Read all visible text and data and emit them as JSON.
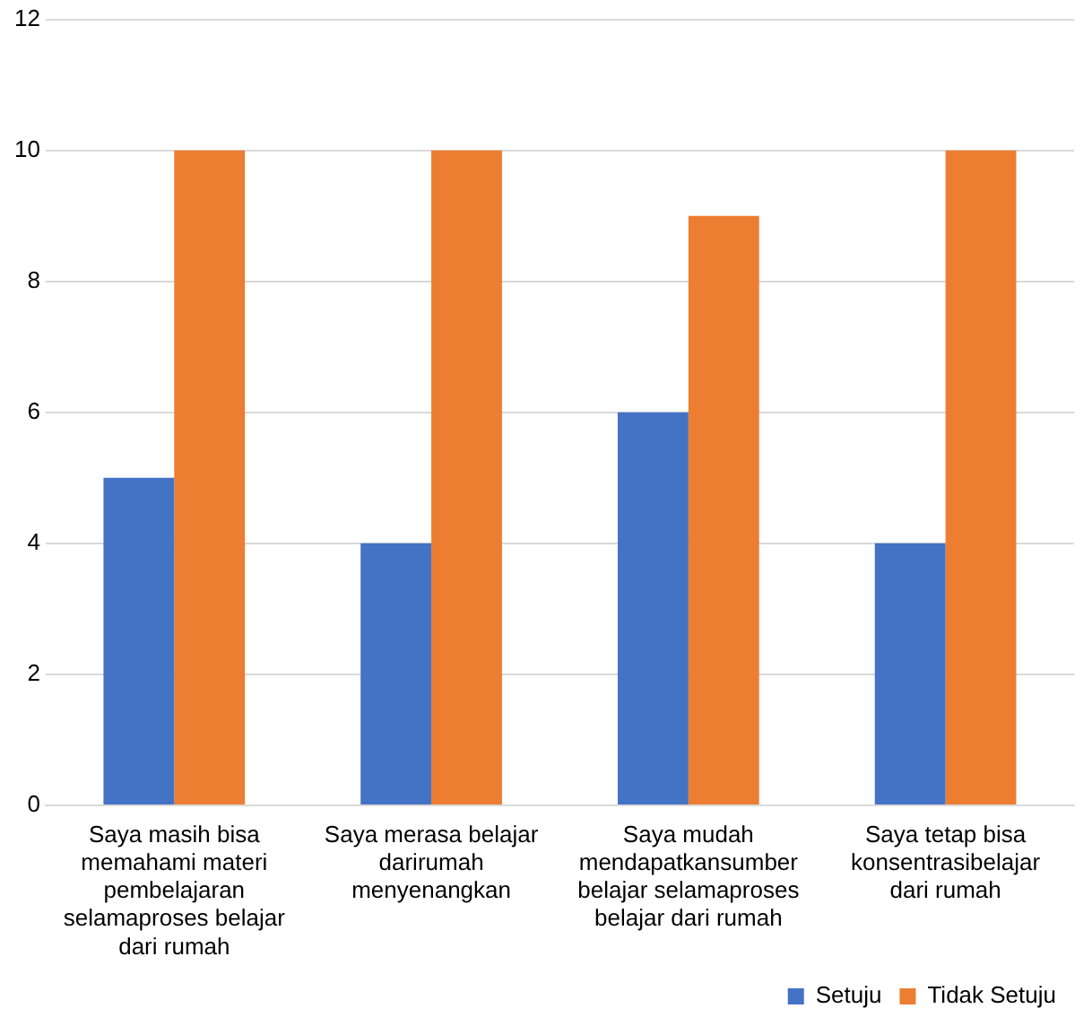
{
  "chart_data": {
    "type": "bar",
    "categories": [
      "Saya masih bisa memahami materi pembelajaran selamaproses belajar dari rumah",
      "Saya merasa belajar darirumah menyenangkan",
      "Saya mudah mendapatkansumber belajar selamaproses belajar dari rumah",
      "Saya tetap bisa konsentrasibelajar dari rumah"
    ],
    "series": [
      {
        "name": "Setuju",
        "color": "#4472c4",
        "values": [
          5,
          4,
          6,
          4
        ]
      },
      {
        "name": "Tidak Setuju",
        "color": "#ed7d31",
        "values": [
          10,
          10,
          9,
          10
        ]
      }
    ],
    "ylim": [
      0,
      12
    ],
    "yticks": [
      0,
      2,
      4,
      6,
      8,
      10,
      12
    ],
    "grid": "y",
    "legend": "bottom right"
  }
}
